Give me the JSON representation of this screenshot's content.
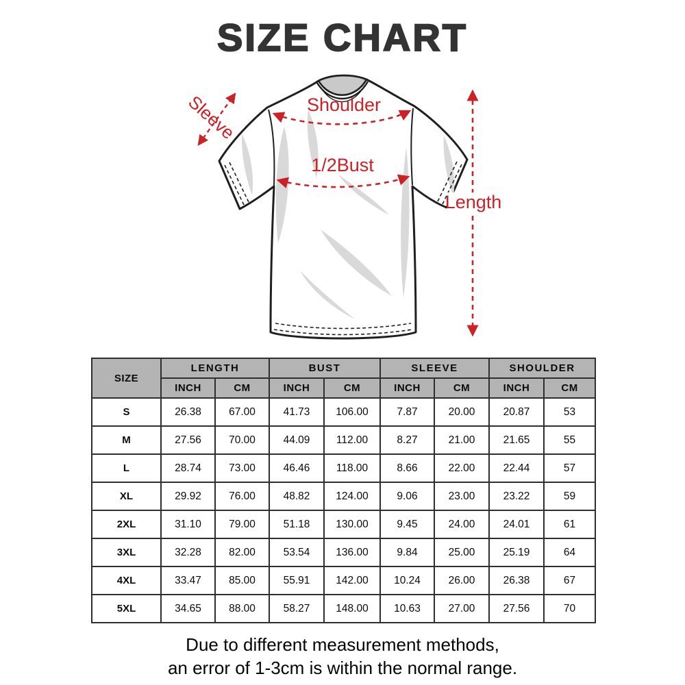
{
  "title": "SIZE CHART",
  "diagram": {
    "labels": {
      "sleeve": "Sleeve",
      "shoulder": "Shoulder",
      "bust": "1/2Bust",
      "length": "Length"
    },
    "annotation_color": "#cc2127"
  },
  "table": {
    "size_header": "SIZE",
    "groups": [
      {
        "label": "LENGTH"
      },
      {
        "label": "BUST"
      },
      {
        "label": "SLEEVE"
      },
      {
        "label": "SHOULDER"
      }
    ],
    "unit_inch": "INCH",
    "unit_cm": "CM",
    "header_bg": "#b4b4b4",
    "rows": [
      {
        "size": "S",
        "values": [
          "26.38",
          "67.00",
          "41.73",
          "106.00",
          "7.87",
          "20.00",
          "20.87",
          "53"
        ]
      },
      {
        "size": "M",
        "values": [
          "27.56",
          "70.00",
          "44.09",
          "112.00",
          "8.27",
          "21.00",
          "21.65",
          "55"
        ]
      },
      {
        "size": "L",
        "values": [
          "28.74",
          "73.00",
          "46.46",
          "118.00",
          "8.66",
          "22.00",
          "22.44",
          "57"
        ]
      },
      {
        "size": "XL",
        "values": [
          "29.92",
          "76.00",
          "48.82",
          "124.00",
          "9.06",
          "23.00",
          "23.22",
          "59"
        ]
      },
      {
        "size": "2XL",
        "values": [
          "31.10",
          "79.00",
          "51.18",
          "130.00",
          "9.45",
          "24.00",
          "24.01",
          "61"
        ]
      },
      {
        "size": "3XL",
        "values": [
          "32.28",
          "82.00",
          "53.54",
          "136.00",
          "9.84",
          "25.00",
          "25.19",
          "64"
        ]
      },
      {
        "size": "4XL",
        "values": [
          "33.47",
          "85.00",
          "55.91",
          "142.00",
          "10.24",
          "26.00",
          "26.38",
          "67"
        ]
      },
      {
        "size": "5XL",
        "values": [
          "34.65",
          "88.00",
          "58.27",
          "148.00",
          "10.63",
          "27.00",
          "27.56",
          "70"
        ]
      }
    ]
  },
  "footer": {
    "line1": "Due to different measurement methods,",
    "line2": "an error of 1-3cm is within the normal range."
  },
  "chart_data": {
    "type": "table",
    "title": "SIZE CHART",
    "columns": [
      "SIZE",
      "LENGTH INCH",
      "LENGTH CM",
      "BUST INCH",
      "BUST CM",
      "SLEEVE INCH",
      "SLEEVE CM",
      "SHOULDER INCH",
      "SHOULDER CM"
    ],
    "rows": [
      [
        "S",
        26.38,
        67.0,
        41.73,
        106.0,
        7.87,
        20.0,
        20.87,
        53
      ],
      [
        "M",
        27.56,
        70.0,
        44.09,
        112.0,
        8.27,
        21.0,
        21.65,
        55
      ],
      [
        "L",
        28.74,
        73.0,
        46.46,
        118.0,
        8.66,
        22.0,
        22.44,
        57
      ],
      [
        "XL",
        29.92,
        76.0,
        48.82,
        124.0,
        9.06,
        23.0,
        23.22,
        59
      ],
      [
        "2XL",
        31.1,
        79.0,
        51.18,
        130.0,
        9.45,
        24.0,
        24.01,
        61
      ],
      [
        "3XL",
        32.28,
        82.0,
        53.54,
        136.0,
        9.84,
        25.0,
        25.19,
        64
      ],
      [
        "4XL",
        33.47,
        85.0,
        55.91,
        142.0,
        10.24,
        26.0,
        26.38,
        67
      ],
      [
        "5XL",
        34.65,
        88.0,
        58.27,
        148.0,
        10.63,
        27.0,
        27.56,
        70
      ]
    ],
    "annotations": [
      "Sleeve",
      "Shoulder",
      "1/2Bust",
      "Length"
    ],
    "note": "Due to different measurement methods, an error of 1-3cm is within the normal range."
  }
}
